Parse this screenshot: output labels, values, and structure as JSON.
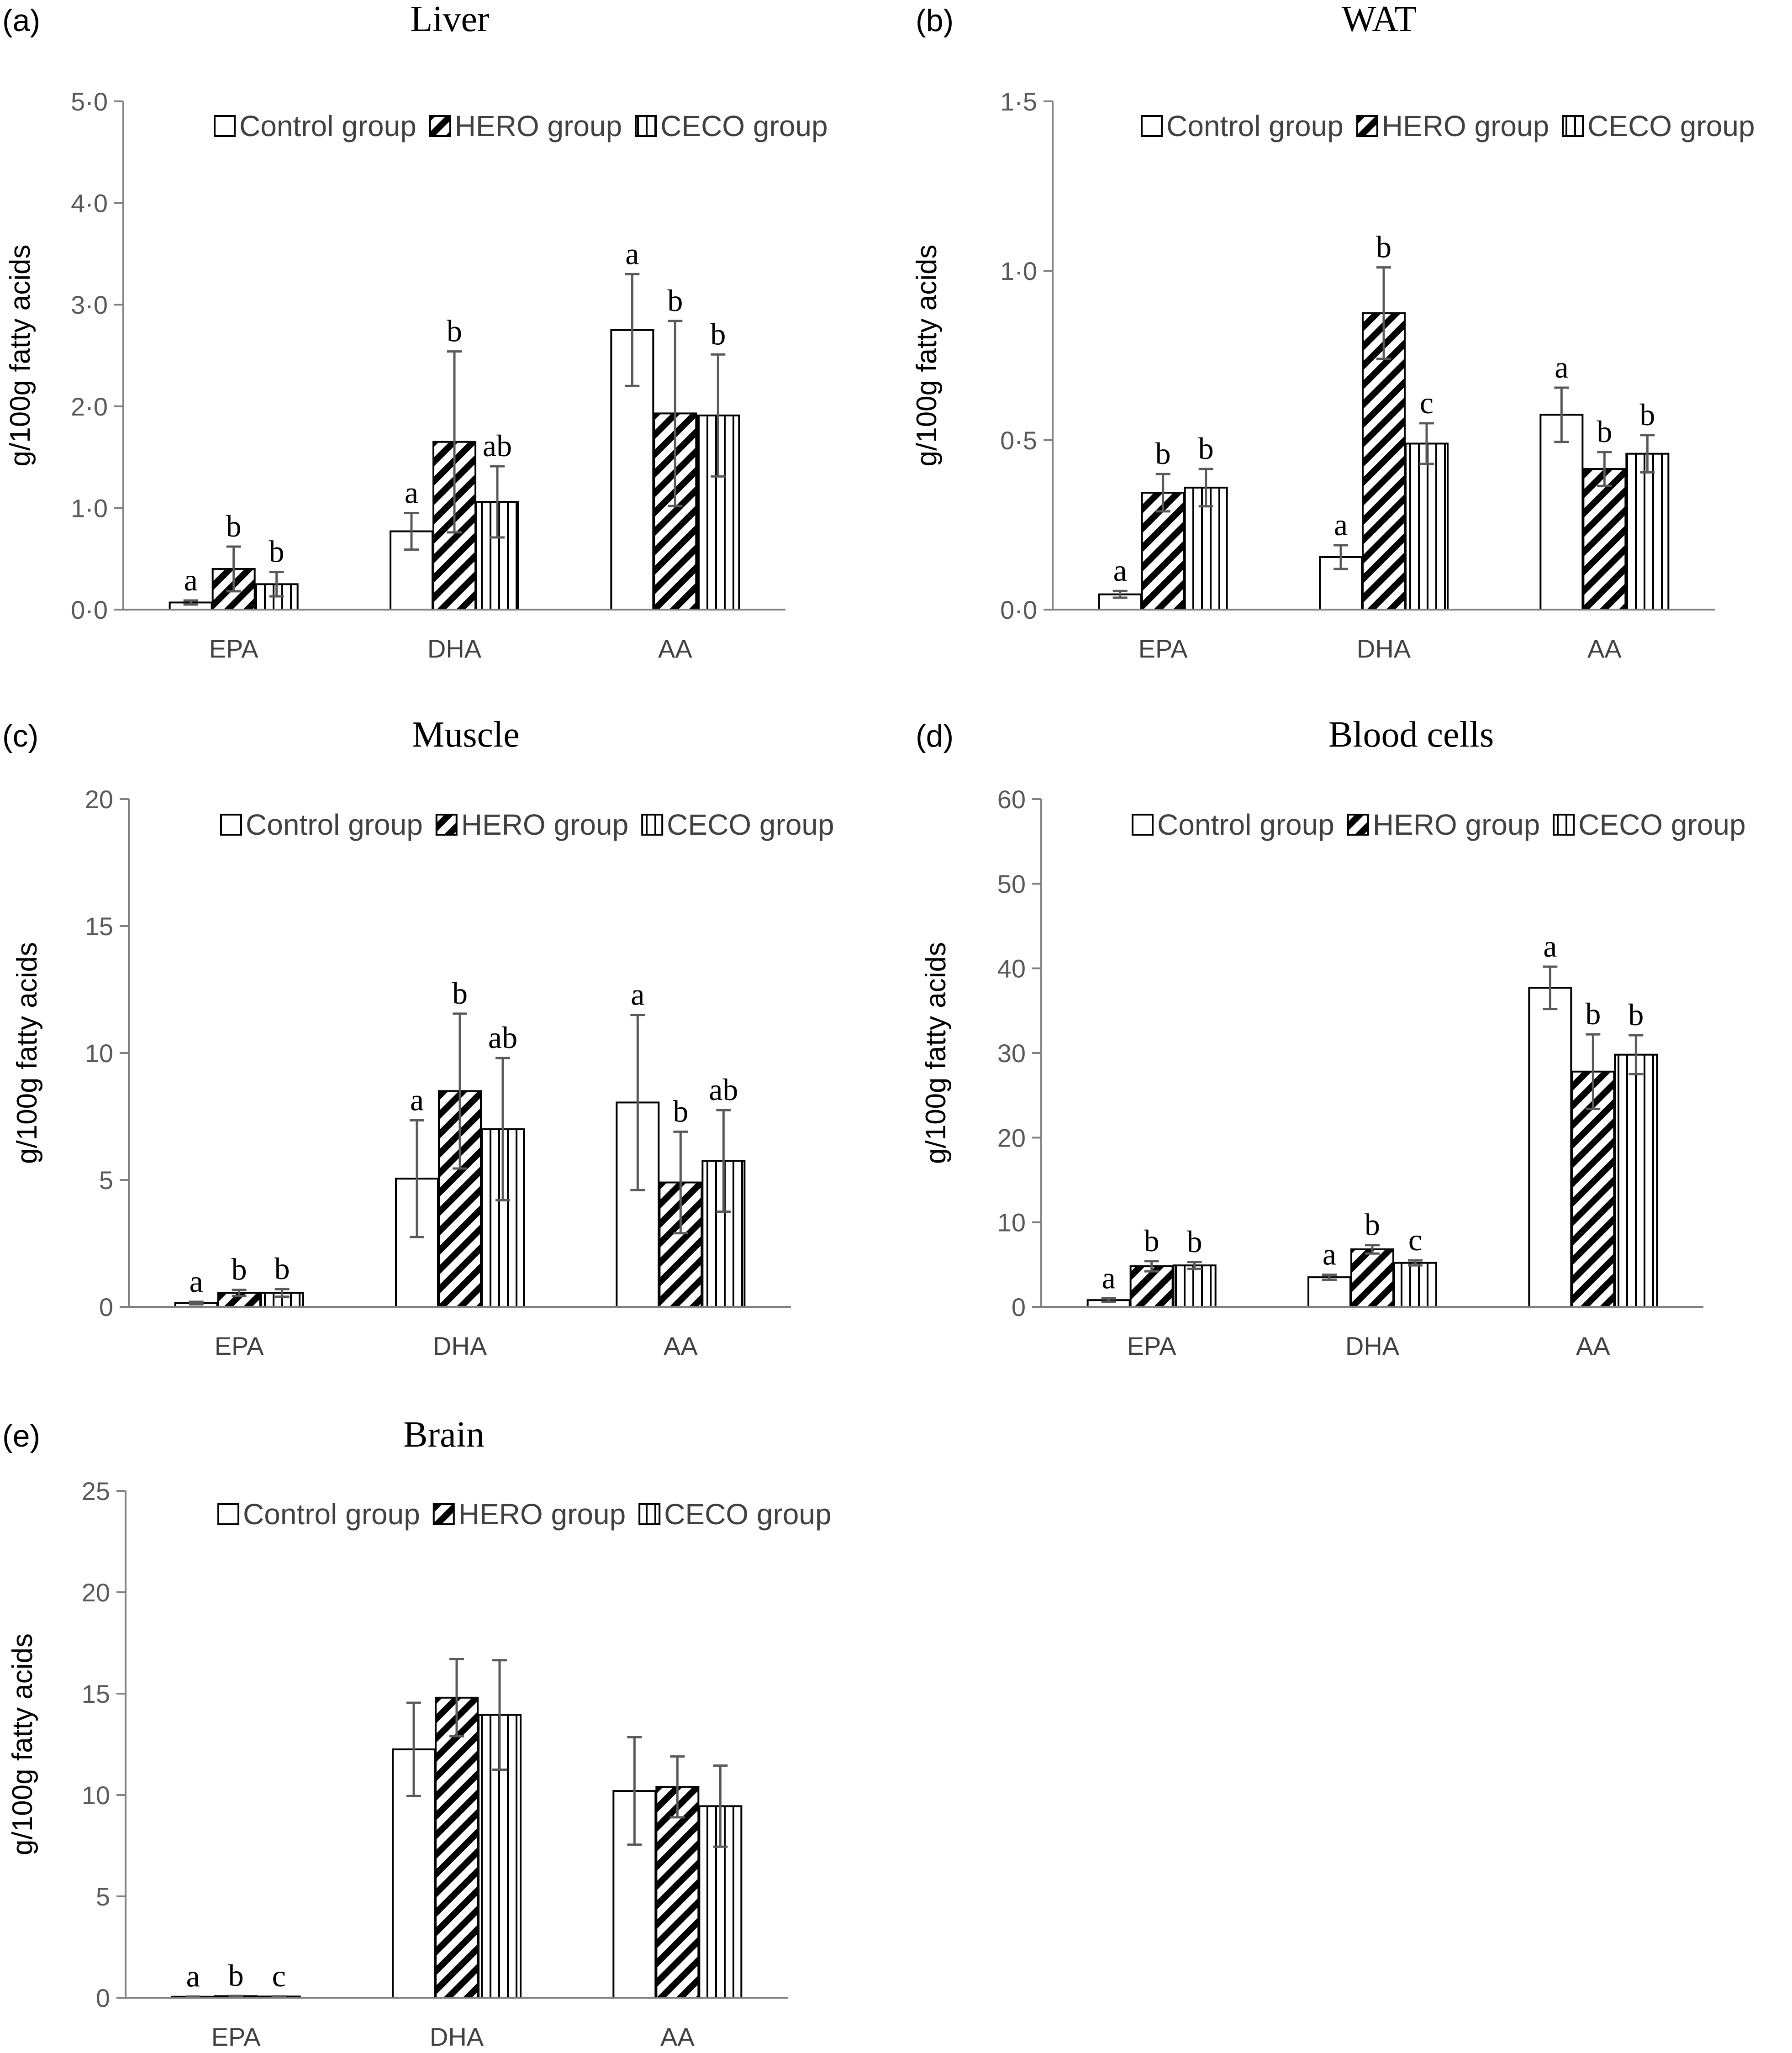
{
  "legend": [
    "Control group",
    "HERO group",
    "CECO group"
  ],
  "categories": [
    "EPA",
    "DHA",
    "AA"
  ],
  "y_axis_label": "g/100g fatty acids",
  "chart_data": [
    {
      "panel": "(a)",
      "title": "Liver",
      "type": "bar",
      "categories": [
        "EPA",
        "DHA",
        "AA"
      ],
      "ylabel": "g/100g fatty acids",
      "ylim": [
        0,
        5
      ],
      "yticks": [
        0,
        1,
        2,
        3,
        4,
        5
      ],
      "ytick_labels": [
        "0·0",
        "1·0",
        "2·0",
        "3·0",
        "4·0",
        "5·0"
      ],
      "series": [
        {
          "name": "Control group",
          "values": [
            0.07,
            0.77,
            2.75
          ],
          "errors": [
            0.02,
            0.18,
            0.55
          ],
          "letters": [
            "a",
            "a",
            "a"
          ]
        },
        {
          "name": "HERO group",
          "values": [
            0.4,
            1.65,
            1.93
          ],
          "errors": [
            0.22,
            0.89,
            0.91
          ],
          "letters": [
            "b",
            "b",
            "b"
          ]
        },
        {
          "name": "CECO group",
          "values": [
            0.25,
            1.06,
            1.91
          ],
          "errors": [
            0.12,
            0.35,
            0.6
          ],
          "letters": [
            "b",
            "ab",
            "b"
          ]
        }
      ]
    },
    {
      "panel": "(b)",
      "title": "WAT",
      "type": "bar",
      "categories": [
        "EPA",
        "DHA",
        "AA"
      ],
      "ylabel": "g/100g fatty acids",
      "ylim": [
        0,
        1.5
      ],
      "yticks": [
        0,
        0.5,
        1.0,
        1.5
      ],
      "ytick_labels": [
        "0·0",
        "0·5",
        "1·0",
        "1·5"
      ],
      "series": [
        {
          "name": "Control group",
          "values": [
            0.045,
            0.155,
            0.575
          ],
          "errors": [
            0.01,
            0.035,
            0.08
          ],
          "letters": [
            "a",
            "a",
            "a"
          ]
        },
        {
          "name": "HERO group",
          "values": [
            0.345,
            0.875,
            0.415
          ],
          "errors": [
            0.055,
            0.135,
            0.05
          ],
          "letters": [
            "b",
            "b",
            "b"
          ]
        },
        {
          "name": "CECO group",
          "values": [
            0.36,
            0.49,
            0.46
          ],
          "errors": [
            0.055,
            0.06,
            0.055
          ],
          "letters": [
            "b",
            "c",
            "b"
          ]
        }
      ]
    },
    {
      "panel": "(c)",
      "title": "Muscle",
      "type": "bar",
      "categories": [
        "EPA",
        "DHA",
        "AA"
      ],
      "ylabel": "g/100g fatty acids",
      "ylim": [
        0,
        20
      ],
      "yticks": [
        0,
        5,
        10,
        15,
        20
      ],
      "ytick_labels": [
        "0",
        "5",
        "10",
        "15",
        "20"
      ],
      "series": [
        {
          "name": "Control group",
          "values": [
            0.15,
            5.05,
            8.05
          ],
          "errors": [
            0.05,
            2.3,
            3.45
          ],
          "letters": [
            "a",
            "a",
            "a"
          ]
        },
        {
          "name": "HERO group",
          "values": [
            0.55,
            8.5,
            4.9
          ],
          "errors": [
            0.12,
            3.05,
            2.0
          ],
          "letters": [
            "b",
            "b",
            "b"
          ]
        },
        {
          "name": "CECO group",
          "values": [
            0.55,
            7.0,
            5.75
          ],
          "errors": [
            0.15,
            2.8,
            2.0
          ],
          "letters": [
            "b",
            "ab",
            "ab"
          ]
        }
      ]
    },
    {
      "panel": "(d)",
      "title": "Blood cells",
      "type": "bar",
      "categories": [
        "EPA",
        "DHA",
        "AA"
      ],
      "ylabel": "g/100g fatty acids",
      "ylim": [
        0,
        60
      ],
      "yticks": [
        0,
        10,
        20,
        30,
        40,
        50,
        60
      ],
      "ytick_labels": [
        "0",
        "10",
        "20",
        "30",
        "40",
        "50",
        "60"
      ],
      "series": [
        {
          "name": "Control group",
          "values": [
            0.8,
            3.5,
            37.7
          ],
          "errors": [
            0.2,
            0.3,
            2.5
          ],
          "letters": [
            "a",
            "a",
            "a"
          ]
        },
        {
          "name": "HERO group",
          "values": [
            4.8,
            6.8,
            27.8
          ],
          "errors": [
            0.6,
            0.5,
            4.4
          ],
          "letters": [
            "b",
            "b",
            "b"
          ]
        },
        {
          "name": "CECO group",
          "values": [
            4.9,
            5.2,
            29.8
          ],
          "errors": [
            0.4,
            0.3,
            2.3
          ],
          "letters": [
            "b",
            "c",
            "b"
          ]
        }
      ]
    },
    {
      "panel": "(e)",
      "title": "Brain",
      "type": "bar",
      "categories": [
        "EPA",
        "DHA",
        "AA"
      ],
      "ylabel": "g/100g fatty acids",
      "ylim": [
        0,
        25
      ],
      "yticks": [
        0,
        5,
        10,
        15,
        20,
        25
      ],
      "ytick_labels": [
        "0",
        "5",
        "10",
        "15",
        "20",
        "25"
      ],
      "series": [
        {
          "name": "Control group",
          "values": [
            0.05,
            12.25,
            10.2
          ],
          "errors": [
            0.01,
            2.3,
            2.65
          ],
          "letters": [
            "a",
            "",
            ""
          ]
        },
        {
          "name": "HERO group",
          "values": [
            0.08,
            14.8,
            10.4
          ],
          "errors": [
            0.01,
            1.9,
            1.5
          ],
          "letters": [
            "b",
            "",
            ""
          ]
        },
        {
          "name": "CECO group",
          "values": [
            0.06,
            13.95,
            9.45
          ],
          "errors": [
            0.01,
            2.7,
            2.0
          ],
          "letters": [
            "c",
            "",
            ""
          ]
        }
      ]
    }
  ]
}
